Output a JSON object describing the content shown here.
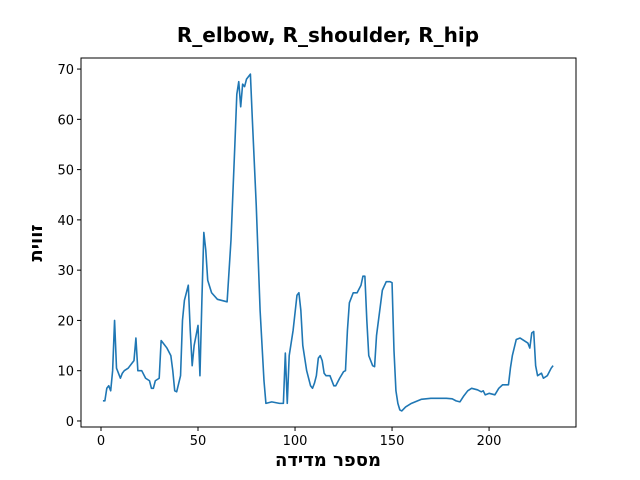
{
  "chart_data": {
    "type": "line",
    "title": "R_elbow, R_shoulder, R_hip",
    "x_label": "מספר מדידה",
    "y_label": "זווית",
    "x": [
      1,
      2,
      3,
      4,
      5,
      6,
      7,
      8,
      9,
      10,
      11,
      12,
      14,
      16,
      17,
      18,
      19,
      21,
      23,
      25,
      26,
      27,
      28,
      30,
      31,
      32,
      34,
      36,
      37,
      38,
      39,
      41,
      42,
      43,
      45,
      46,
      47,
      48,
      49,
      50,
      51,
      52,
      53,
      54,
      55,
      57,
      60,
      64,
      65,
      67,
      69,
      70,
      71,
      72,
      73,
      74,
      75,
      76,
      77,
      78,
      80,
      82,
      84,
      85,
      88,
      92,
      94,
      95,
      96,
      97,
      99,
      101,
      102,
      103,
      104,
      106,
      108,
      109,
      110,
      111,
      112,
      113,
      114,
      115,
      116,
      118,
      120,
      121,
      123,
      125,
      126,
      127,
      128,
      130,
      132,
      134,
      135,
      136,
      137,
      138,
      140,
      141,
      142,
      144,
      145,
      147,
      149,
      150,
      151,
      152,
      153,
      154,
      155,
      157,
      160,
      165,
      170,
      178,
      181,
      183,
      185,
      187,
      189,
      191,
      194,
      196,
      197,
      198,
      200,
      203,
      205,
      207,
      210,
      211,
      212,
      214,
      216,
      218,
      220,
      221,
      222,
      223,
      224,
      225,
      227,
      228,
      230,
      232,
      233
    ],
    "series": [
      {
        "name": "R_elbow, R_shoulder, R_hip",
        "color": "#1f77b4",
        "values": [
          4,
          4,
          6.5,
          7,
          6,
          10,
          20,
          10.5,
          9.5,
          8.5,
          9.5,
          10,
          10.5,
          11.5,
          12,
          16.5,
          10,
          10,
          8.5,
          8,
          6.5,
          6.5,
          8,
          8.5,
          16,
          15.5,
          14.5,
          13,
          10,
          6,
          5.8,
          9,
          20,
          24,
          27,
          18,
          11,
          15,
          17,
          19,
          9,
          24,
          37.5,
          34,
          28,
          25.5,
          24.2,
          23.8,
          23.7,
          36,
          55,
          65,
          67.5,
          62.5,
          67,
          66.5,
          68,
          68.5,
          69,
          60,
          43,
          22,
          8,
          3.5,
          3.8,
          3.5,
          3.5,
          13.5,
          3.5,
          13,
          18,
          25,
          25.5,
          22,
          15,
          10,
          7,
          6.5,
          7.5,
          9,
          12.5,
          13,
          12,
          9.5,
          9,
          9,
          7,
          7,
          8.5,
          9.8,
          10,
          18,
          23.5,
          25.5,
          25.5,
          27,
          28.8,
          28.8,
          20,
          13,
          11,
          10.8,
          17,
          23,
          26,
          27.7,
          27.7,
          27.5,
          14,
          6,
          3.5,
          2.2,
          2,
          2.8,
          3.5,
          4.3,
          4.5,
          4.5,
          4.4,
          4,
          3.8,
          5,
          6,
          6.5,
          6.2,
          5.8,
          6,
          5.2,
          5.5,
          5.2,
          6.5,
          7.2,
          7.2,
          10.5,
          13,
          16.2,
          16.5,
          16,
          15.5,
          14.5,
          17.5,
          17.8,
          11,
          9,
          9.5,
          8.5,
          9,
          10.5,
          11
        ]
      }
    ],
    "xlim": [
      -10.3,
      244.8
    ],
    "ylim": [
      -1.2,
      72.2
    ],
    "xticks": [
      0,
      50,
      100,
      150,
      200
    ],
    "yticks": [
      0,
      10,
      20,
      30,
      40,
      50,
      60,
      70
    ],
    "grid": false
  }
}
